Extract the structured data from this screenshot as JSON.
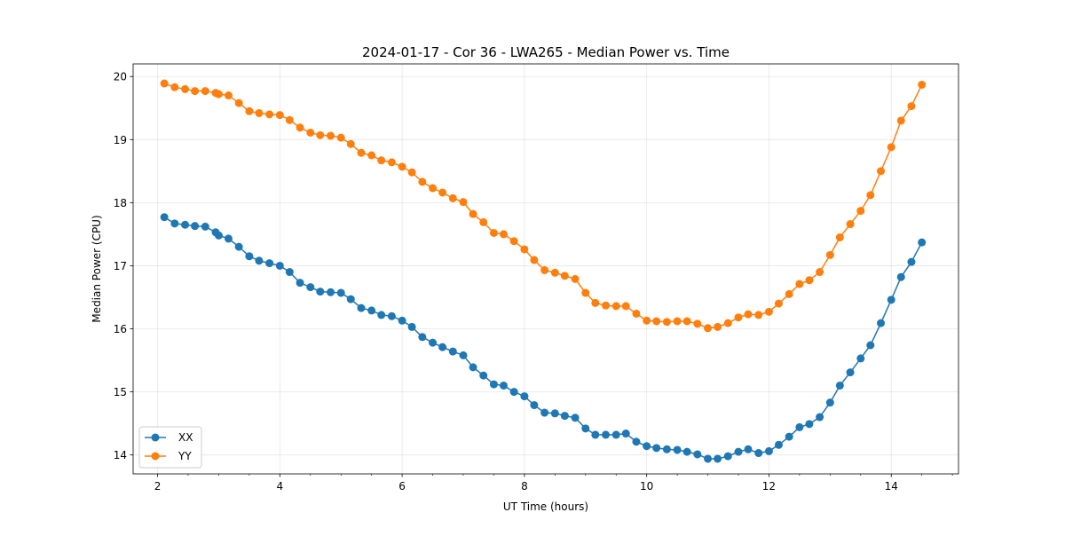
{
  "chart_data": {
    "type": "line",
    "title": "2024-01-17 - Cor 36 - LWA265 - Median Power vs. Time",
    "xlabel": "UT Time (hours)",
    "ylabel": "Median Power (CPU)",
    "xlim": [
      1.6,
      15.1
    ],
    "ylim": [
      13.7,
      20.2
    ],
    "xticks": [
      2,
      4,
      6,
      8,
      10,
      12,
      14
    ],
    "xtick_labels": [
      "2",
      "4",
      "6",
      "8",
      "10",
      "12",
      "14"
    ],
    "xminor_step": 0.5,
    "yticks": [
      14,
      15,
      16,
      17,
      18,
      19,
      20
    ],
    "ytick_labels": [
      "14",
      "15",
      "16",
      "17",
      "18",
      "19",
      "20"
    ],
    "grid": true,
    "legend_position": "lower-left",
    "x": [
      2.11,
      2.28,
      2.45,
      2.61,
      2.78,
      2.95,
      3.0,
      3.16,
      3.33,
      3.5,
      3.66,
      3.83,
      4.0,
      4.16,
      4.33,
      4.5,
      4.66,
      4.83,
      5.0,
      5.16,
      5.33,
      5.5,
      5.66,
      5.83,
      6.0,
      6.16,
      6.33,
      6.5,
      6.66,
      6.83,
      7.0,
      7.16,
      7.33,
      7.5,
      7.66,
      7.83,
      8.0,
      8.16,
      8.33,
      8.5,
      8.66,
      8.83,
      9.0,
      9.16,
      9.33,
      9.5,
      9.66,
      9.83,
      10.0,
      10.16,
      10.33,
      10.5,
      10.66,
      10.83,
      11.0,
      11.16,
      11.33,
      11.5,
      11.66,
      11.83,
      12.0,
      12.16,
      12.33,
      12.5,
      12.66,
      12.83,
      13.0,
      13.16,
      13.33,
      13.5,
      13.66,
      13.83,
      14.0,
      14.16,
      14.33,
      14.5
    ],
    "series": [
      {
        "name": "XX",
        "color": "#1f77b4",
        "values": [
          17.77,
          17.67,
          17.65,
          17.63,
          17.62,
          17.53,
          17.48,
          17.43,
          17.3,
          17.15,
          17.08,
          17.04,
          17.0,
          16.9,
          16.73,
          16.66,
          16.59,
          16.58,
          16.57,
          16.47,
          16.33,
          16.29,
          16.22,
          16.2,
          16.13,
          16.03,
          15.87,
          15.78,
          15.71,
          15.64,
          15.58,
          15.39,
          15.26,
          15.12,
          15.1,
          15.0,
          14.93,
          14.79,
          14.67,
          14.66,
          14.62,
          14.59,
          14.42,
          14.32,
          14.32,
          14.32,
          14.34,
          14.21,
          14.14,
          14.11,
          14.09,
          14.08,
          14.05,
          14.01,
          13.94,
          13.94,
          13.98,
          14.05,
          14.09,
          14.03,
          14.06,
          14.16,
          14.29,
          14.44,
          14.49,
          14.6,
          14.83,
          15.1,
          15.31,
          15.53,
          15.74,
          16.09,
          16.46,
          16.82,
          17.06,
          17.37
        ]
      },
      {
        "name": "YY",
        "color": "#ff7f0e",
        "values": [
          19.89,
          19.83,
          19.8,
          19.77,
          19.77,
          19.74,
          19.72,
          19.7,
          19.58,
          19.45,
          19.42,
          19.4,
          19.39,
          19.31,
          19.19,
          19.11,
          19.07,
          19.06,
          19.03,
          18.93,
          18.79,
          18.75,
          18.67,
          18.64,
          18.57,
          18.48,
          18.33,
          18.23,
          18.16,
          18.07,
          18.01,
          17.82,
          17.69,
          17.52,
          17.5,
          17.39,
          17.26,
          17.09,
          16.93,
          16.89,
          16.84,
          16.79,
          16.57,
          16.41,
          16.37,
          16.36,
          16.36,
          16.24,
          16.13,
          16.12,
          16.11,
          16.12,
          16.12,
          16.08,
          16.01,
          16.03,
          16.09,
          16.18,
          16.23,
          16.22,
          16.27,
          16.4,
          16.55,
          16.71,
          16.77,
          16.9,
          17.17,
          17.45,
          17.66,
          17.87,
          18.12,
          18.5,
          18.88,
          19.3,
          19.53,
          19.87
        ]
      }
    ]
  }
}
